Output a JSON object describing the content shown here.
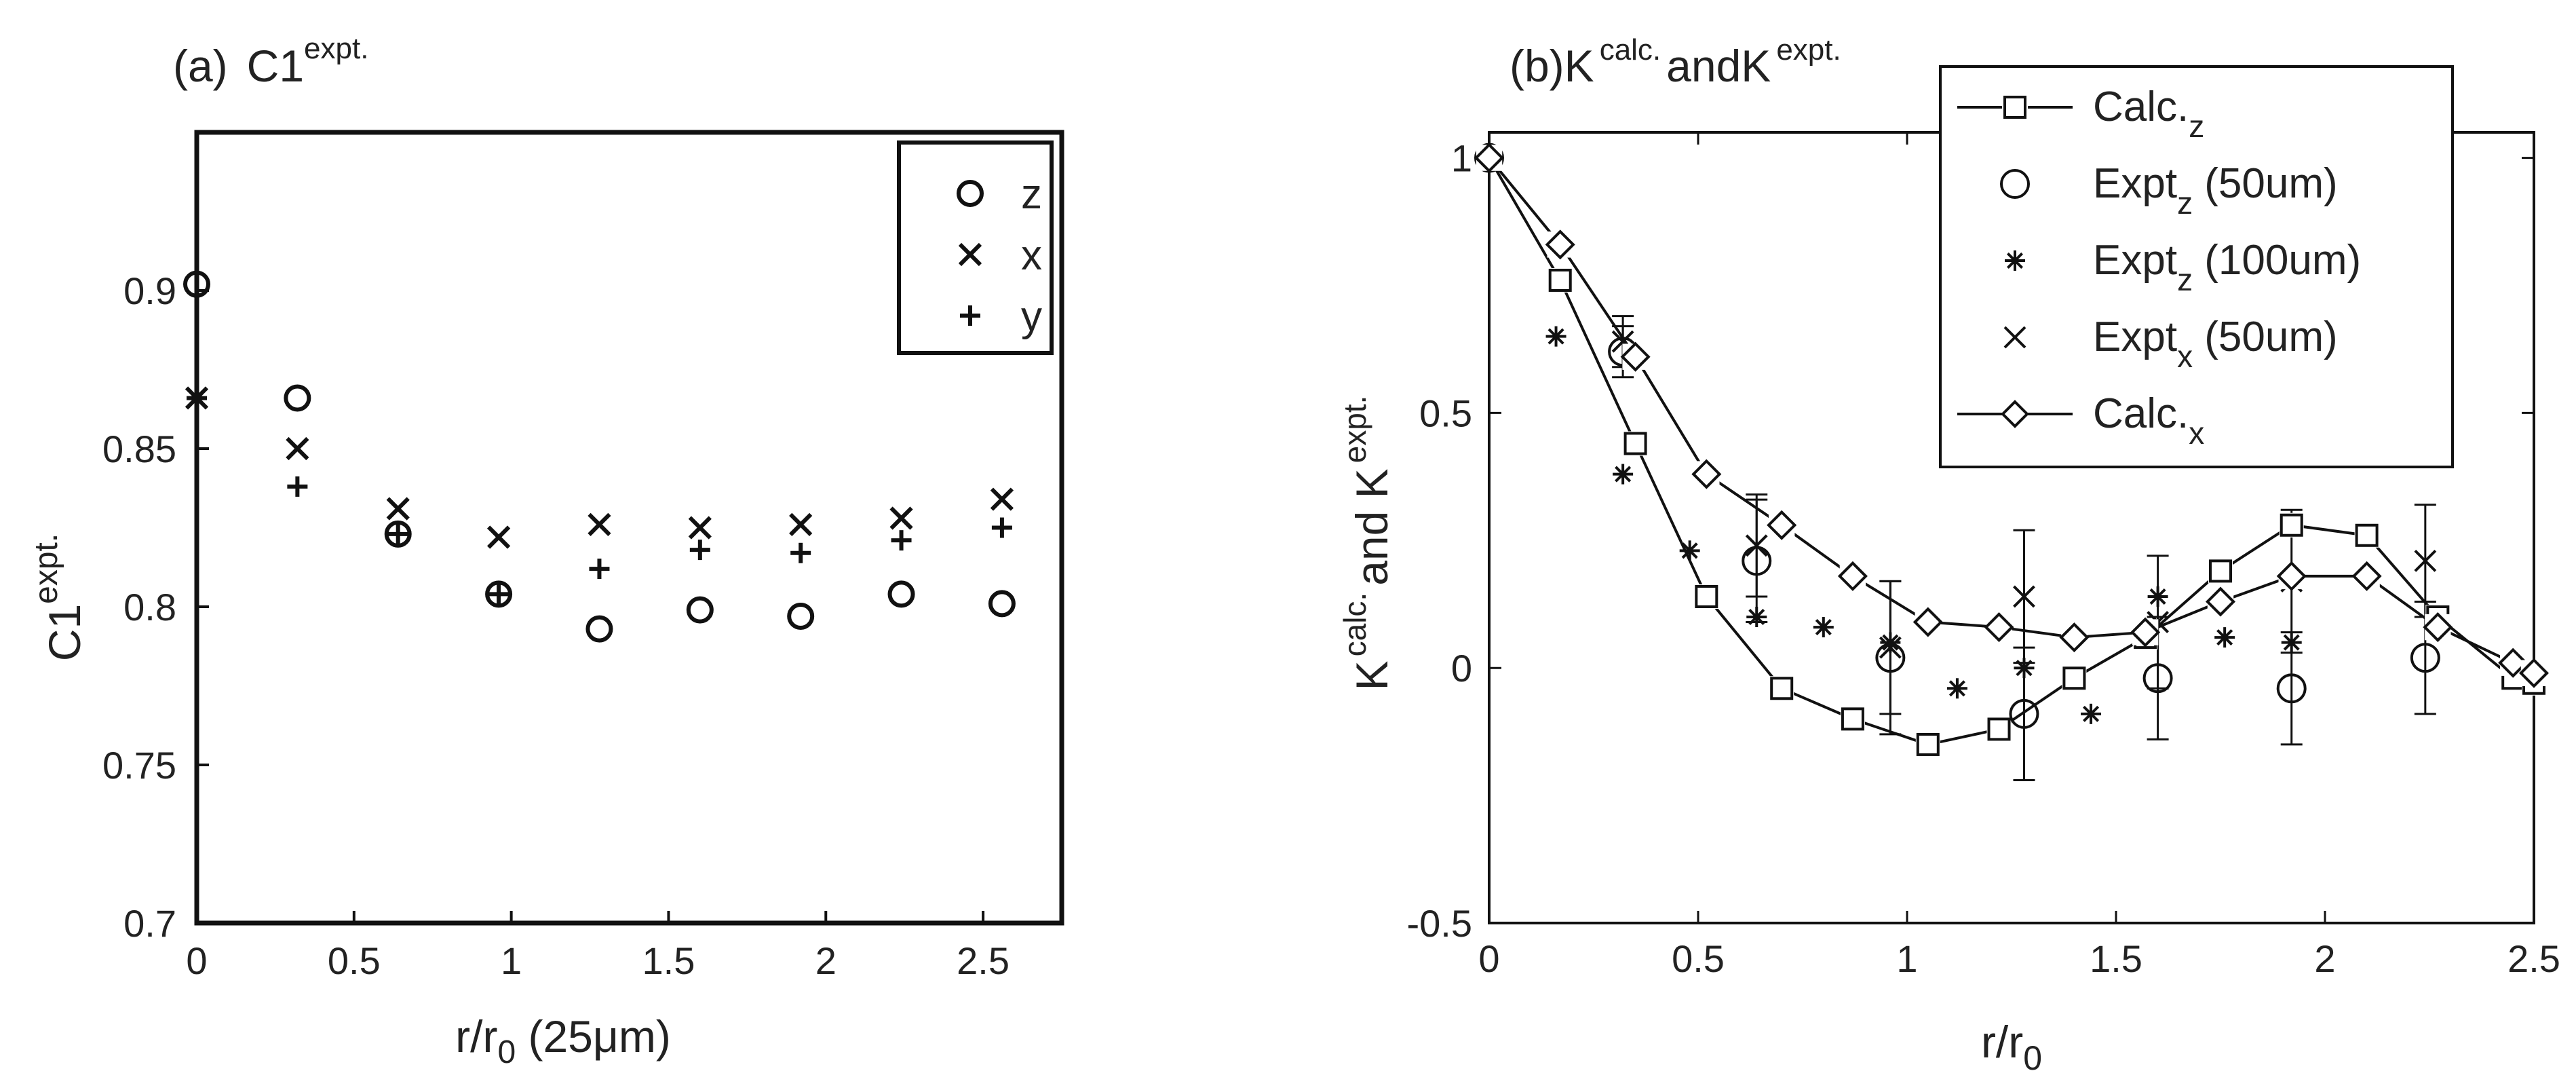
{
  "chart_data": [
    {
      "type": "scatter",
      "panel": "(a)",
      "title_main": "C1",
      "title_sup": "expt.",
      "ylabel_main": "C1",
      "ylabel_sup": "expt.",
      "xlabel_main": "r/r",
      "xlabel_sub": "0",
      "xlabel_suffix": " (25μm)",
      "xlim": [
        0,
        2.75
      ],
      "ylim": [
        0.7,
        0.95
      ],
      "xticks": [
        "0",
        "0.5",
        "1",
        "1.5",
        "2",
        "2.5"
      ],
      "yticks": [
        "0.7",
        "0.75",
        "0.8",
        "0.85",
        "0.9"
      ],
      "grid": false,
      "legend_position": "top-right",
      "series": [
        {
          "name": "z",
          "marker": "circle",
          "x": [
            0,
            0.32,
            0.64,
            0.96,
            1.28,
            1.6,
            1.92,
            2.24,
            2.56
          ],
          "y": [
            0.902,
            0.866,
            0.823,
            0.804,
            0.793,
            0.799,
            0.797,
            0.804,
            0.801
          ]
        },
        {
          "name": "x",
          "marker": "x",
          "x": [
            0,
            0.32,
            0.64,
            0.96,
            1.28,
            1.6,
            1.92,
            2.24,
            2.56
          ],
          "y": [
            0.866,
            0.85,
            0.831,
            0.822,
            0.826,
            0.825,
            0.826,
            0.828,
            0.834
          ]
        },
        {
          "name": "y",
          "marker": "plus",
          "x": [
            0,
            0.32,
            0.64,
            0.96,
            1.28,
            1.6,
            1.92,
            2.24,
            2.56
          ],
          "y": [
            0.866,
            0.838,
            0.823,
            0.804,
            0.812,
            0.818,
            0.817,
            0.821,
            0.825
          ]
        }
      ]
    },
    {
      "type": "line",
      "panel": "(b)",
      "title_parts": [
        "(b)K",
        "calc.",
        "andK",
        "expt."
      ],
      "ylabel_parts": [
        "K",
        "calc.",
        "and K",
        "expt."
      ],
      "xlabel_main": "r/r",
      "xlabel_sub": "0",
      "xlim": [
        0,
        2.5
      ],
      "ylim": [
        -0.5,
        1.05
      ],
      "xticks": [
        "0",
        "0.5",
        "1",
        "1.5",
        "2",
        "2.5"
      ],
      "yticks": [
        "-0.5",
        "0",
        "0.5",
        "1"
      ],
      "grid": false,
      "legend_position": "top-right",
      "series": [
        {
          "name": "Calc.",
          "name_sub": "z",
          "marker": "square",
          "line": true,
          "x": [
            0,
            0.17,
            0.35,
            0.52,
            0.7,
            0.87,
            1.05,
            1.22,
            1.4,
            1.57,
            1.75,
            1.92,
            2.1,
            2.27,
            2.45,
            2.5
          ],
          "y": [
            1.0,
            0.76,
            0.44,
            0.14,
            -0.04,
            -0.1,
            -0.15,
            -0.12,
            -0.02,
            0.06,
            0.19,
            0.28,
            0.26,
            0.1,
            -0.02,
            -0.03
          ]
        },
        {
          "name": "Expt",
          "name_sub": "z",
          "name_suffix": " (50um)",
          "marker": "circle",
          "line": false,
          "x": [
            0,
            0.32,
            0.64,
            0.96,
            1.28,
            1.6,
            1.92,
            2.24
          ],
          "y": [
            1.0,
            0.62,
            0.21,
            0.02,
            -0.09,
            -0.02,
            -0.04,
            0.02
          ],
          "err": [
            0,
            0.05,
            0.12,
            0.15,
            0.13,
            0.12,
            0.11,
            0.11
          ]
        },
        {
          "name": "Expt",
          "name_sub": "z",
          "name_suffix": " (100um)",
          "marker": "asterisk",
          "line": false,
          "x": [
            0,
            0.16,
            0.32,
            0.48,
            0.64,
            0.8,
            0.96,
            1.12,
            1.28,
            1.44,
            1.6,
            1.76,
            1.92
          ],
          "y": [
            1.0,
            0.65,
            0.38,
            0.23,
            0.1,
            0.08,
            0.05,
            -0.04,
            0.0,
            -0.09,
            0.14,
            0.06,
            0.05
          ]
        },
        {
          "name": "Expt",
          "name_sub": "x",
          "name_suffix": " (50um)",
          "marker": "x",
          "line": false,
          "x": [
            0,
            0.32,
            0.64,
            0.96,
            1.28,
            1.6,
            1.92,
            2.24
          ],
          "y": [
            1.0,
            0.64,
            0.24,
            0.04,
            0.14,
            0.09,
            0.17,
            0.21
          ],
          "err": [
            0,
            0.05,
            0.1,
            0.13,
            0.13,
            0.13,
            0.14,
            0.11
          ]
        },
        {
          "name": "Calc.",
          "name_sub": "x",
          "marker": "diamond",
          "line": true,
          "x": [
            0,
            0.17,
            0.35,
            0.52,
            0.7,
            0.87,
            1.05,
            1.22,
            1.4,
            1.57,
            1.75,
            1.92,
            2.1,
            2.27,
            2.45,
            2.5
          ],
          "y": [
            1.0,
            0.83,
            0.61,
            0.38,
            0.28,
            0.18,
            0.09,
            0.08,
            0.06,
            0.07,
            0.13,
            0.18,
            0.18,
            0.08,
            0.01,
            -0.01
          ]
        }
      ]
    }
  ]
}
